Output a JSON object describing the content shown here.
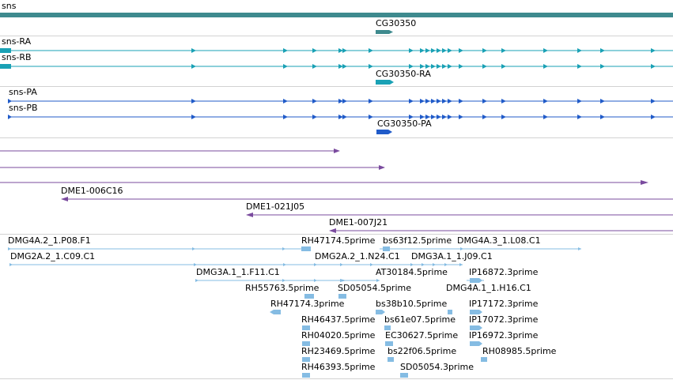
{
  "colors": {
    "gene": "#3e8a8e",
    "transcript": "#1aa1b5",
    "cds": "#205bc9",
    "clone": "#7a4b9e",
    "est": "#85bce3",
    "separator": "#d2d2d2"
  },
  "gene_track": {
    "gene_label": "sns",
    "cg_label": "CG30350"
  },
  "transcripts": {
    "ra_label": "sns-RA",
    "rb_label": "sns-RB",
    "cg_ra_label": "CG30350-RA"
  },
  "proteins": {
    "pa_label": "sns-PA",
    "pb_label": "sns-PB",
    "cg_pa_label": "CG30350-PA"
  },
  "clones": {
    "c1_label": "DME1-006C16",
    "c2_label": "DME1-021J05",
    "c3_label": "DME1-007J21"
  },
  "ests": {
    "e01": "DMG4A.2_1.P08.F1",
    "e02": "DMG2A.2_1.C09.C1",
    "e03": "DMG3A.1_1.F11.C1",
    "e04": "RH47174.5prime",
    "e05": "bs63f12.5prime",
    "e06": "DMG4A.3_1.L08.C1",
    "e07": "DMG2A.2_1.N24.C1",
    "e08": "DMG3A.1_1.J09.C1",
    "e09": "AT30184.5prime",
    "e10": "IP16872.3prime",
    "e11": "RH55763.5prime",
    "e12": "SD05054.5prime",
    "e13": "DMG4A.1_1.H16.C1",
    "e14": "RH47174.3prime",
    "e15": "bs38b10.5prime",
    "e16": "IP17172.3prime",
    "e17": "RH46437.5prime",
    "e18": "bs61e07.5prime",
    "e19": "IP17072.3prime",
    "e20": "RH04020.5prime",
    "e21": "EC30627.5prime",
    "e22": "IP16972.3prime",
    "e23": "RH23469.5prime",
    "e24": "bs22f06.5prime",
    "e25": "RH08985.5prime",
    "e26": "RH46393.5prime",
    "e27": "SD05054.3prime"
  }
}
